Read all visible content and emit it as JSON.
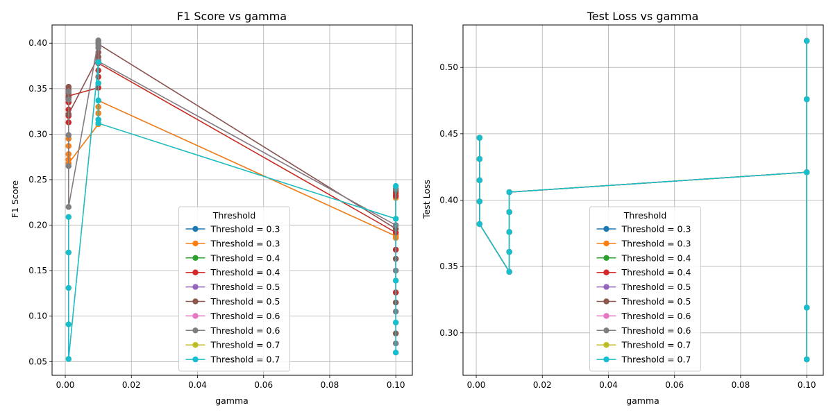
{
  "figure": {
    "background": "#ffffff"
  },
  "colors": [
    "#1f77b4",
    "#ff7f0e",
    "#2ca02c",
    "#d62728",
    "#9467bd",
    "#8c564b",
    "#e377c2",
    "#7f7f7f",
    "#bcbd22",
    "#17becf"
  ],
  "chart_data": [
    {
      "type": "line",
      "title": "F1 Score vs gamma",
      "xlabel": "gamma",
      "ylabel": "F1 Score",
      "xlim": [
        -0.004,
        0.105
      ],
      "ylim": [
        0.035,
        0.42
      ],
      "xticks": [
        0.0,
        0.02,
        0.04,
        0.06,
        0.08,
        0.1
      ],
      "xtick_labels": [
        "0.00",
        "0.02",
        "0.04",
        "0.06",
        "0.08",
        "0.10"
      ],
      "yticks": [
        0.05,
        0.1,
        0.15,
        0.2,
        0.25,
        0.3,
        0.35,
        0.4
      ],
      "ytick_labels": [
        "0.05",
        "0.10",
        "0.15",
        "0.20",
        "0.25",
        "0.30",
        "0.35",
        "0.40"
      ],
      "grid": true,
      "legend": {
        "title": "Threshold",
        "placement": "lower-center",
        "entries": [
          "Threshold = 0.3",
          "Threshold = 0.3",
          "Threshold = 0.4",
          "Threshold = 0.4",
          "Threshold = 0.5",
          "Threshold = 0.5",
          "Threshold = 0.6",
          "Threshold = 0.6",
          "Threshold = 0.7",
          "Threshold = 0.7"
        ]
      },
      "series": [
        {
          "name": "Threshold = 0.3",
          "points": [
            [
              0.001,
              0.295
            ],
            [
              0.001,
              0.287
            ],
            [
              0.001,
              0.278
            ],
            [
              0.001,
              0.272
            ],
            [
              0.001,
              0.268
            ],
            [
              0.01,
              0.311
            ],
            [
              0.01,
              0.316
            ],
            [
              0.01,
              0.323
            ],
            [
              0.01,
              0.33
            ],
            [
              0.01,
              0.337
            ],
            [
              0.1,
              0.188
            ],
            [
              0.1,
              0.186
            ],
            [
              0.1,
              0.19
            ],
            [
              0.1,
              0.23
            ],
            [
              0.1,
              0.234
            ]
          ]
        },
        {
          "name": "Threshold = 0.3",
          "points": [
            [
              0.001,
              0.295
            ],
            [
              0.001,
              0.287
            ],
            [
              0.001,
              0.278
            ],
            [
              0.001,
              0.272
            ],
            [
              0.001,
              0.268
            ],
            [
              0.01,
              0.311
            ],
            [
              0.01,
              0.316
            ],
            [
              0.01,
              0.323
            ],
            [
              0.01,
              0.33
            ],
            [
              0.01,
              0.337
            ],
            [
              0.1,
              0.188
            ],
            [
              0.1,
              0.186
            ],
            [
              0.1,
              0.19
            ],
            [
              0.1,
              0.23
            ],
            [
              0.1,
              0.234
            ]
          ]
        },
        {
          "name": "Threshold = 0.4",
          "points": [
            [
              0.001,
              0.335
            ],
            [
              0.001,
              0.327
            ],
            [
              0.001,
              0.32
            ],
            [
              0.001,
              0.313
            ],
            [
              0.001,
              0.342
            ],
            [
              0.01,
              0.351
            ],
            [
              0.01,
              0.356
            ],
            [
              0.01,
              0.363
            ],
            [
              0.01,
              0.37
            ],
            [
              0.01,
              0.378
            ],
            [
              0.1,
              0.192
            ],
            [
              0.1,
              0.126
            ],
            [
              0.1,
              0.173
            ],
            [
              0.1,
              0.232
            ],
            [
              0.1,
              0.236
            ]
          ]
        },
        {
          "name": "Threshold = 0.4",
          "points": [
            [
              0.001,
              0.335
            ],
            [
              0.001,
              0.327
            ],
            [
              0.001,
              0.32
            ],
            [
              0.001,
              0.313
            ],
            [
              0.001,
              0.342
            ],
            [
              0.01,
              0.351
            ],
            [
              0.01,
              0.356
            ],
            [
              0.01,
              0.363
            ],
            [
              0.01,
              0.37
            ],
            [
              0.01,
              0.378
            ],
            [
              0.1,
              0.192
            ],
            [
              0.1,
              0.126
            ],
            [
              0.1,
              0.173
            ],
            [
              0.1,
              0.232
            ],
            [
              0.1,
              0.236
            ]
          ]
        },
        {
          "name": "Threshold = 0.5",
          "points": [
            [
              0.001,
              0.352
            ],
            [
              0.001,
              0.349
            ],
            [
              0.001,
              0.345
            ],
            [
              0.001,
              0.34
            ],
            [
              0.001,
              0.322
            ],
            [
              0.01,
              0.385
            ],
            [
              0.01,
              0.381
            ],
            [
              0.01,
              0.39
            ],
            [
              0.01,
              0.395
            ],
            [
              0.01,
              0.399
            ],
            [
              0.1,
              0.196
            ],
            [
              0.1,
              0.081
            ],
            [
              0.1,
              0.115
            ],
            [
              0.1,
              0.163
            ],
            [
              0.1,
              0.238
            ]
          ]
        },
        {
          "name": "Threshold = 0.5",
          "points": [
            [
              0.001,
              0.352
            ],
            [
              0.001,
              0.349
            ],
            [
              0.001,
              0.345
            ],
            [
              0.001,
              0.34
            ],
            [
              0.001,
              0.322
            ],
            [
              0.01,
              0.385
            ],
            [
              0.01,
              0.381
            ],
            [
              0.01,
              0.39
            ],
            [
              0.01,
              0.395
            ],
            [
              0.01,
              0.399
            ],
            [
              0.1,
              0.196
            ],
            [
              0.1,
              0.081
            ],
            [
              0.1,
              0.115
            ],
            [
              0.1,
              0.163
            ],
            [
              0.1,
              0.238
            ]
          ]
        },
        {
          "name": "Threshold = 0.6",
          "points": [
            [
              0.001,
              0.347
            ],
            [
              0.001,
              0.338
            ],
            [
              0.001,
              0.299
            ],
            [
              0.001,
              0.265
            ],
            [
              0.001,
              0.22
            ],
            [
              0.01,
              0.403
            ],
            [
              0.01,
              0.401
            ],
            [
              0.01,
              0.398
            ],
            [
              0.01,
              0.395
            ],
            [
              0.01,
              0.38
            ],
            [
              0.1,
              0.2
            ],
            [
              0.1,
              0.07
            ],
            [
              0.1,
              0.105
            ],
            [
              0.1,
              0.15
            ],
            [
              0.1,
              0.24
            ]
          ]
        },
        {
          "name": "Threshold = 0.6",
          "points": [
            [
              0.001,
              0.347
            ],
            [
              0.001,
              0.338
            ],
            [
              0.001,
              0.299
            ],
            [
              0.001,
              0.265
            ],
            [
              0.001,
              0.22
            ],
            [
              0.01,
              0.403
            ],
            [
              0.01,
              0.401
            ],
            [
              0.01,
              0.398
            ],
            [
              0.01,
              0.395
            ],
            [
              0.01,
              0.38
            ],
            [
              0.1,
              0.2
            ],
            [
              0.1,
              0.07
            ],
            [
              0.1,
              0.105
            ],
            [
              0.1,
              0.15
            ],
            [
              0.1,
              0.24
            ]
          ]
        },
        {
          "name": "Threshold = 0.7",
          "points": [
            [
              0.001,
              0.209
            ],
            [
              0.001,
              0.17
            ],
            [
              0.001,
              0.131
            ],
            [
              0.001,
              0.091
            ],
            [
              0.001,
              0.053
            ],
            [
              0.01,
              0.379
            ],
            [
              0.01,
              0.356
            ],
            [
              0.01,
              0.337
            ],
            [
              0.01,
              0.316
            ],
            [
              0.01,
              0.312
            ],
            [
              0.1,
              0.207
            ],
            [
              0.1,
              0.06
            ],
            [
              0.1,
              0.093
            ],
            [
              0.1,
              0.139
            ],
            [
              0.1,
              0.243
            ]
          ]
        },
        {
          "name": "Threshold = 0.7",
          "points": [
            [
              0.001,
              0.209
            ],
            [
              0.001,
              0.17
            ],
            [
              0.001,
              0.131
            ],
            [
              0.001,
              0.091
            ],
            [
              0.001,
              0.053
            ],
            [
              0.01,
              0.379
            ],
            [
              0.01,
              0.356
            ],
            [
              0.01,
              0.337
            ],
            [
              0.01,
              0.316
            ],
            [
              0.01,
              0.312
            ],
            [
              0.1,
              0.207
            ],
            [
              0.1,
              0.06
            ],
            [
              0.1,
              0.093
            ],
            [
              0.1,
              0.139
            ],
            [
              0.1,
              0.243
            ]
          ]
        }
      ]
    },
    {
      "type": "line",
      "title": "Test Loss vs gamma",
      "xlabel": "gamma",
      "ylabel": "Test Loss",
      "xlim": [
        -0.004,
        0.105
      ],
      "ylim": [
        0.268,
        0.532
      ],
      "xticks": [
        0.0,
        0.02,
        0.04,
        0.06,
        0.08,
        0.1
      ],
      "xtick_labels": [
        "0.00",
        "0.02",
        "0.04",
        "0.06",
        "0.08",
        "0.10"
      ],
      "yticks": [
        0.3,
        0.35,
        0.4,
        0.45,
        0.5
      ],
      "ytick_labels": [
        "0.30",
        "0.35",
        "0.40",
        "0.45",
        "0.50"
      ],
      "grid": true,
      "legend": {
        "title": "Threshold",
        "placement": "lower-center",
        "entries": [
          "Threshold = 0.3",
          "Threshold = 0.3",
          "Threshold = 0.4",
          "Threshold = 0.4",
          "Threshold = 0.5",
          "Threshold = 0.5",
          "Threshold = 0.6",
          "Threshold = 0.6",
          "Threshold = 0.7",
          "Threshold = 0.7"
        ]
      },
      "shared_points_note": "",
      "series_points": [
        [
          0.001,
          0.447
        ],
        [
          0.001,
          0.431
        ],
        [
          0.001,
          0.415
        ],
        [
          0.001,
          0.399
        ],
        [
          0.001,
          0.382
        ],
        [
          0.01,
          0.346
        ],
        [
          0.01,
          0.361
        ],
        [
          0.01,
          0.376
        ],
        [
          0.01,
          0.391
        ],
        [
          0.01,
          0.406
        ],
        [
          0.1,
          0.421
        ],
        [
          0.1,
          0.476
        ],
        [
          0.1,
          0.52
        ],
        [
          0.1,
          0.319
        ],
        [
          0.1,
          0.28
        ]
      ],
      "series_names": [
        "Threshold = 0.3",
        "Threshold = 0.3",
        "Threshold = 0.4",
        "Threshold = 0.4",
        "Threshold = 0.5",
        "Threshold = 0.5",
        "Threshold = 0.6",
        "Threshold = 0.6",
        "Threshold = 0.7",
        "Threshold = 0.7"
      ]
    }
  ]
}
